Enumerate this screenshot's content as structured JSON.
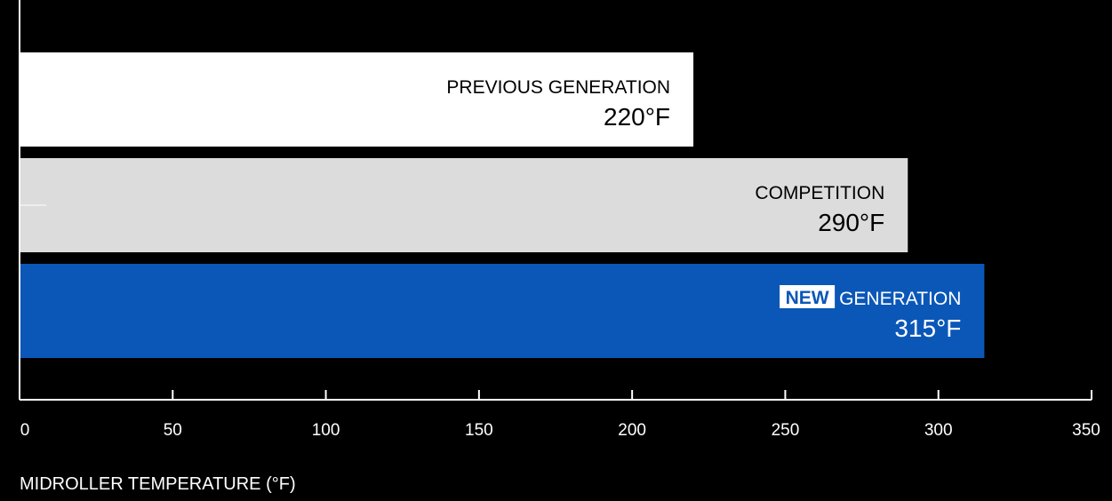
{
  "chart_data": {
    "type": "bar",
    "orientation": "horizontal",
    "categories": [
      "PREVIOUS GENERATION",
      "COMPETITION",
      "GENERATION"
    ],
    "values": [
      220,
      290,
      315
    ],
    "value_labels": [
      "220°F",
      "290°F",
      "315°F"
    ],
    "highlight_badge": "NEW",
    "bar_colors": [
      "#ffffff",
      "#dcdcdc",
      "#0b57b8"
    ],
    "label_colors": [
      "#000000",
      "#000000",
      "#ffffff"
    ],
    "xlabel": "MIDROLLER TEMPERATURE (°F)",
    "xlim": [
      0,
      350
    ],
    "xticks": [
      0,
      50,
      100,
      150,
      200,
      250,
      300,
      350
    ],
    "grid": false,
    "background": "#000000",
    "axis_color": "#ffffff"
  }
}
